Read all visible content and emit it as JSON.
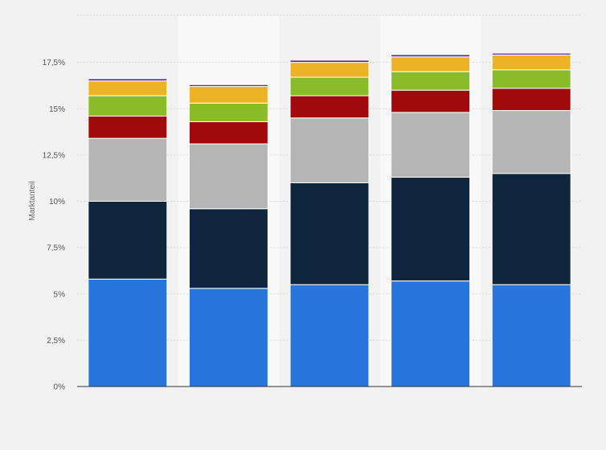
{
  "chart_data": {
    "type": "bar",
    "stacked": true,
    "categories": [
      "",
      "",
      "",
      "",
      ""
    ],
    "series": [
      {
        "color": "#2876dd",
        "values": [
          5.8,
          5.3,
          5.5,
          5.7,
          5.5
        ]
      },
      {
        "color": "#0f263c",
        "values": [
          4.2,
          4.3,
          5.5,
          5.6,
          6.0
        ]
      },
      {
        "color": "#b5b5b5",
        "values": [
          3.4,
          3.5,
          3.5,
          3.5,
          3.4
        ]
      },
      {
        "color": "#a10a0a",
        "values": [
          1.2,
          1.2,
          1.2,
          1.2,
          1.2
        ]
      },
      {
        "color": "#8abb28",
        "values": [
          1.1,
          1.0,
          1.0,
          1.0,
          1.0
        ]
      },
      {
        "color": "#ebb325",
        "values": [
          0.8,
          0.9,
          0.8,
          0.8,
          0.8
        ]
      },
      {
        "color": "#5e2b88",
        "values": [
          0.12,
          0.1,
          0.12,
          0.12,
          0.1
        ]
      }
    ],
    "title": "",
    "xlabel": "",
    "ylabel": "Marktanteil",
    "ylim": [
      0,
      20
    ],
    "yticks": [
      {
        "value": 0,
        "label": "0%"
      },
      {
        "value": 2.5,
        "label": "2,5%"
      },
      {
        "value": 5,
        "label": "5%"
      },
      {
        "value": 7.5,
        "label": "7,5%"
      },
      {
        "value": 10,
        "label": "10%"
      },
      {
        "value": 12.5,
        "label": "12,5%"
      },
      {
        "value": 15,
        "label": "15%"
      },
      {
        "value": 17.5,
        "label": "17,5%"
      }
    ],
    "grid": true,
    "legend": "none",
    "colors": {
      "background": "#f2f2f2",
      "plot_background": "#f2f2f2",
      "alt_band": "#f8f8f8"
    }
  }
}
